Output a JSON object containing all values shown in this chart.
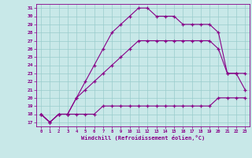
{
  "xlabel": "Windchill (Refroidissement éolien,°C)",
  "xlim": [
    -0.5,
    23.5
  ],
  "ylim": [
    16.5,
    31.5
  ],
  "xticks": [
    0,
    1,
    2,
    3,
    4,
    5,
    6,
    7,
    8,
    9,
    10,
    11,
    12,
    13,
    14,
    15,
    16,
    17,
    18,
    19,
    20,
    21,
    22,
    23
  ],
  "yticks": [
    17,
    18,
    19,
    20,
    21,
    22,
    23,
    24,
    25,
    26,
    27,
    28,
    29,
    30,
    31
  ],
  "bg_color": "#c8e8e8",
  "line_color": "#880088",
  "grid_color": "#99cccc",
  "lines": [
    {
      "x": [
        0,
        1,
        2,
        3,
        4,
        5,
        6,
        7,
        8,
        9,
        10,
        11,
        12,
        13,
        14,
        15,
        16,
        17,
        18,
        19,
        20,
        21,
        22,
        23
      ],
      "y": [
        18,
        17,
        18,
        18,
        18,
        18,
        18,
        19,
        19,
        19,
        19,
        19,
        19,
        19,
        19,
        19,
        19,
        19,
        19,
        19,
        20,
        20,
        20,
        20
      ]
    },
    {
      "x": [
        0,
        1,
        2,
        3,
        4,
        5,
        6,
        7,
        8,
        9,
        10,
        11,
        12,
        13,
        14,
        15,
        16,
        17,
        18,
        19,
        20,
        21,
        22,
        23
      ],
      "y": [
        18,
        17,
        18,
        18,
        20,
        21,
        22,
        23,
        24,
        25,
        26,
        27,
        27,
        27,
        27,
        27,
        27,
        27,
        27,
        27,
        26,
        23,
        23,
        21
      ]
    },
    {
      "x": [
        0,
        1,
        2,
        3,
        4,
        5,
        6,
        7,
        8,
        9,
        10,
        11,
        12,
        13,
        14,
        15,
        16,
        17,
        18,
        19,
        20,
        21,
        22,
        23
      ],
      "y": [
        18,
        17,
        18,
        18,
        20,
        22,
        24,
        26,
        28,
        29,
        30,
        31,
        31,
        30,
        30,
        30,
        29,
        29,
        29,
        29,
        28,
        23,
        23,
        23
      ]
    }
  ]
}
